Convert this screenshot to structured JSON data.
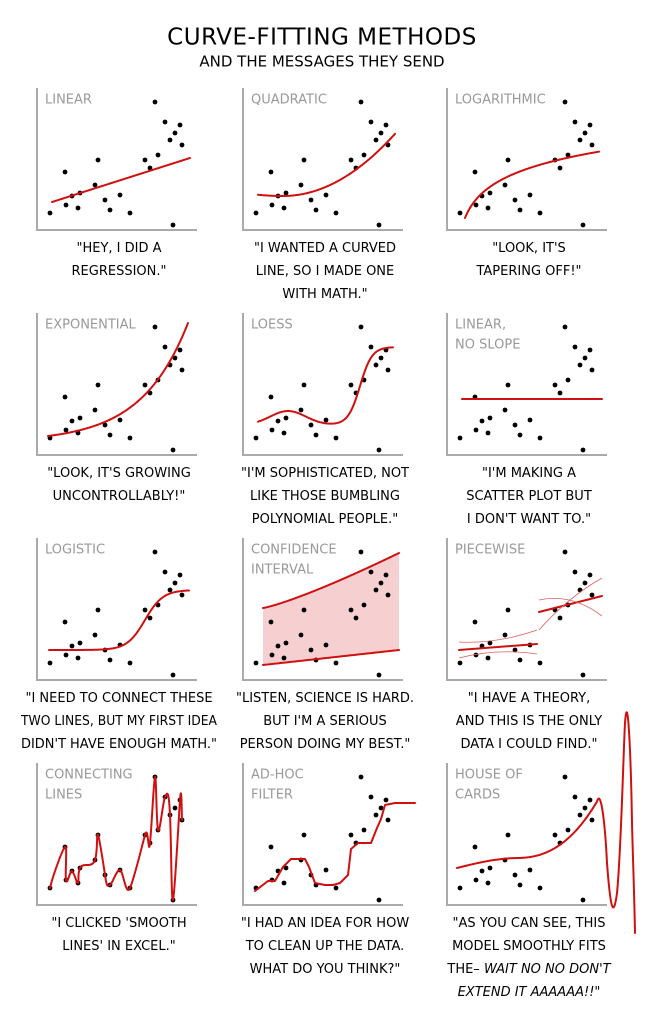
{
  "title": "CURVE-FITTING METHODS",
  "subtitle": "AND THE MESSAGES THEY SEND",
  "panels": [
    {
      "label": [
        "LINEAR"
      ],
      "caption": [
        "\"HEY, I DID A",
        "REGRESSION.\""
      ]
    },
    {
      "label": [
        "QUADRATIC"
      ],
      "caption": [
        "\"I WANTED A CURVED",
        "LINE, SO I MADE ONE",
        "WITH MATH.\""
      ]
    },
    {
      "label": [
        "LOGARITHMIC"
      ],
      "caption": [
        "\"LOOK, IT'S",
        "TAPERING OFF!\""
      ]
    },
    {
      "label": [
        "EXPONENTIAL"
      ],
      "caption": [
        "\"LOOK, IT'S GROWING",
        "UNCONTROLLABLY!\""
      ]
    },
    {
      "label": [
        "LOESS"
      ],
      "caption": [
        "\"I'M SOPHISTICATED, NOT",
        "LIKE THOSE BUMBLING",
        "POLYNOMIAL PEOPLE.\""
      ]
    },
    {
      "label": [
        "LINEAR,",
        "NO SLOPE"
      ],
      "caption": [
        "\"I'M MAKING A",
        "SCATTER PLOT BUT",
        "I DON'T WANT TO.\""
      ]
    },
    {
      "label": [
        "LOGISTIC"
      ],
      "caption": [
        "\"I NEED TO CONNECT THESE",
        "TWO LINES, BUT MY FIRST IDEA",
        "DIDN'T HAVE ENOUGH MATH.\""
      ]
    },
    {
      "label": [
        "CONFIDENCE",
        "INTERVAL"
      ],
      "caption": [
        "\"LISTEN, SCIENCE IS HARD.",
        "BUT I'M A SERIOUS",
        "PERSON DOING MY BEST.\""
      ]
    },
    {
      "label": [
        "PIECEWISE"
      ],
      "caption": [
        "\"I HAVE A THEORY,",
        "AND THIS IS THE ONLY",
        "DATA I COULD FIND.\""
      ]
    },
    {
      "label": [
        "CONNECTING",
        "LINES"
      ],
      "caption": [
        "\"I CLICKED 'SMOOTH",
        "LINES' IN EXCEL.\""
      ]
    },
    {
      "label": [
        "AD-HOC",
        "FILTER"
      ],
      "caption": [
        "\"I HAD AN IDEA FOR HOW",
        "TO CLEAN UP THE DATA.",
        "WHAT DO YOU THINK?\""
      ]
    },
    {
      "label": [
        "HOUSE OF",
        "CARDS"
      ],
      "caption": [
        "\"AS YOU CAN SEE, THIS",
        "MODEL SMOOTHLY FITS",
        [
          "THE– ",
          {
            "text": "WAIT NO NO DON'T",
            "italic": true
          }
        ],
        [
          {
            "text": "EXTEND IT AAAAAA!!",
            "italic": true
          },
          "\""
        ]
      ]
    }
  ]
}
